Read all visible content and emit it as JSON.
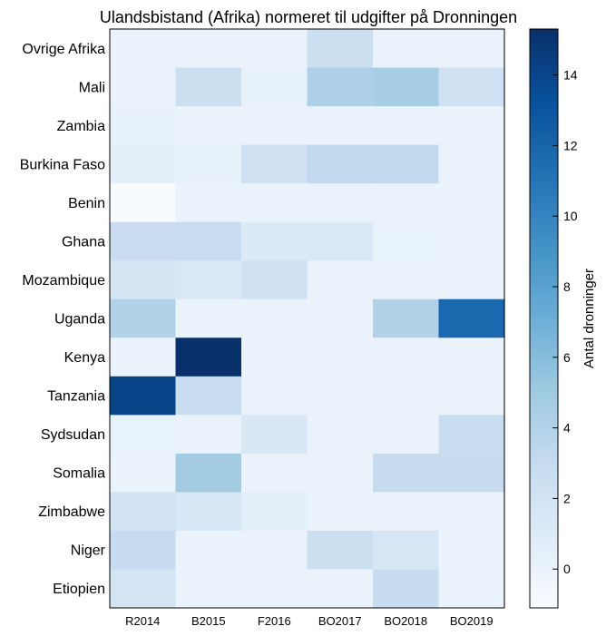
{
  "chart_data": {
    "type": "heatmap",
    "title": "Ulandsbistand (Afrika) normeret til udgifter på Dronningen",
    "x_categories": [
      "R2014",
      "B2015",
      "F2016",
      "BO2017",
      "BO2018",
      "BO2019"
    ],
    "y_categories": [
      "Ovrige Afrika",
      "Mali",
      "Zambia",
      "Burkina Faso",
      "Benin",
      "Ghana",
      "Mozambique",
      "Uganda",
      "Kenya",
      "Tanzania",
      "Sydsudan",
      "Somalia",
      "Zimbabwe",
      "Niger",
      "Etiopien"
    ],
    "values": [
      [
        0.0,
        0.0,
        0.0,
        2.5,
        0.0,
        0.0
      ],
      [
        0.0,
        2.5,
        0.2,
        4.3,
        4.6,
        2.2
      ],
      [
        0.2,
        0.0,
        0.0,
        0.0,
        0.0,
        0.0
      ],
      [
        0.4,
        0.2,
        2.3,
        3.3,
        3.3,
        0.0
      ],
      [
        -1.1,
        0.0,
        0.0,
        0.0,
        0.0,
        0.0
      ],
      [
        2.7,
        2.8,
        1.1,
        1.2,
        0.1,
        0.0
      ],
      [
        1.7,
        1.3,
        2.2,
        0.0,
        0.0,
        0.0
      ],
      [
        4.1,
        0.0,
        0.0,
        0.0,
        4.1,
        11.8
      ],
      [
        0.0,
        15.3,
        0.0,
        0.0,
        0.0,
        0.0
      ],
      [
        14.1,
        2.8,
        0.0,
        0.0,
        0.0,
        0.0
      ],
      [
        0.1,
        0.0,
        1.4,
        0.0,
        0.0,
        2.8
      ],
      [
        0.0,
        4.8,
        0.0,
        0.0,
        2.9,
        2.9
      ],
      [
        2.0,
        1.5,
        0.5,
        0.0,
        0.0,
        0.0
      ],
      [
        3.0,
        0.0,
        0.0,
        2.5,
        1.6,
        0.0
      ],
      [
        1.9,
        0.0,
        0.0,
        0.0,
        2.9,
        0.0
      ]
    ],
    "colorbar": {
      "label": "Antal dronninger",
      "min": -1.1,
      "max": 15.3,
      "ticks": [
        0,
        2,
        4,
        6,
        8,
        10,
        12,
        14
      ],
      "colormap": "Blues"
    },
    "grid": false
  }
}
